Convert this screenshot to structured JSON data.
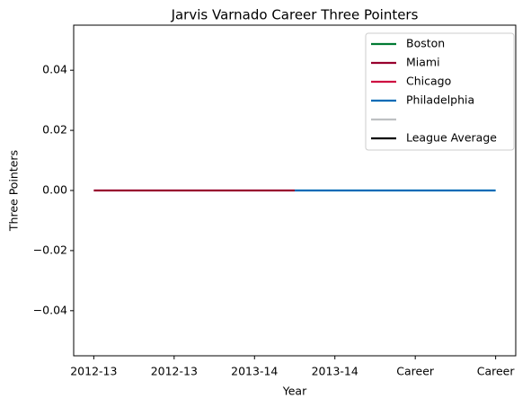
{
  "chart_data": {
    "type": "line",
    "title": "Jarvis Varnado Career Three Pointers",
    "xlabel": "Year",
    "ylabel": "Three Pointers",
    "x": [
      0,
      1,
      2,
      2.5,
      3,
      4,
      5
    ],
    "xticks": [
      {
        "value": 0,
        "label": "2012-13"
      },
      {
        "value": 1,
        "label": "2012-13"
      },
      {
        "value": 2,
        "label": "2013-14"
      },
      {
        "value": 3,
        "label": "2013-14"
      },
      {
        "value": 4,
        "label": "Career"
      },
      {
        "value": 5,
        "label": "Career"
      }
    ],
    "xlim": [
      -0.25,
      5.25
    ],
    "ylim": [
      -0.055,
      0.055
    ],
    "yticks": [
      {
        "value": -0.04,
        "label": "−0.04"
      },
      {
        "value": -0.02,
        "label": "−0.02"
      },
      {
        "value": 0,
        "label": "0.00"
      },
      0.02,
      0.04
    ],
    "legend": "upper right",
    "series": [
      {
        "name": "Boston",
        "color": "#007A33",
        "values": [
          null,
          null,
          null,
          null,
          null,
          null,
          null
        ]
      },
      {
        "name": "Miami",
        "color": "#98002E",
        "values": [
          0,
          0,
          0,
          0,
          null,
          null,
          null
        ]
      },
      {
        "name": "Chicago",
        "color": "#CE1141",
        "values": [
          null,
          null,
          null,
          null,
          null,
          null,
          null
        ]
      },
      {
        "name": "Philadelphia",
        "color": "#006BB6",
        "values": [
          null,
          null,
          null,
          0,
          0,
          0,
          0
        ]
      },
      {
        "color": "#BEC0C2",
        "values": [
          null,
          null,
          null,
          null,
          null,
          null,
          null
        ]
      },
      {
        "name": "League Average",
        "color": "#000000",
        "values": [
          null,
          null,
          null,
          null,
          null,
          null,
          null
        ]
      }
    ]
  }
}
